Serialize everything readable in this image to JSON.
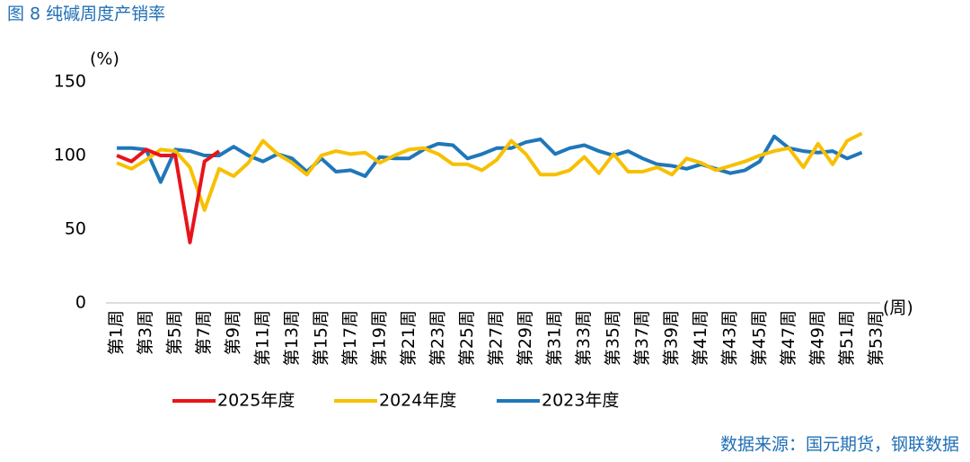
{
  "chart_data": {
    "type": "line",
    "title": "图 8  纯碱周度产销率",
    "y_unit": "(%)",
    "x_unit": "(周)",
    "source": "数据来源：国元期货，钢联数据",
    "categories": [
      "第1周",
      null,
      "第3周",
      null,
      "第5周",
      null,
      "第7周",
      null,
      "第9周",
      null,
      "第11周",
      null,
      "第13周",
      null,
      "第15周",
      null,
      "第17周",
      null,
      "第19周",
      null,
      "第21周",
      null,
      "第23周",
      null,
      "第25周",
      null,
      "第27周",
      null,
      "第29周",
      null,
      "第31周",
      null,
      "第33周",
      null,
      "第35周",
      null,
      "第37周",
      null,
      "第39周",
      null,
      "第41周",
      null,
      "第43周",
      null,
      "第45周",
      null,
      "第47周",
      null,
      "第49周",
      null,
      "第51周",
      null,
      "第53周"
    ],
    "ylim": [
      0,
      150
    ],
    "yticks": [
      0,
      50,
      100,
      150
    ],
    "grid": false,
    "series": [
      {
        "name": "2025年度",
        "color": "#e8141b",
        "values": [
          100,
          96,
          104,
          100,
          100,
          41,
          96,
          103,
          null,
          null,
          null,
          null,
          null,
          null,
          null,
          null,
          null,
          null,
          null,
          null,
          null,
          null,
          null,
          null,
          null,
          null,
          null,
          null,
          null,
          null,
          null,
          null,
          null,
          null,
          null,
          null,
          null,
          null,
          null,
          null,
          null,
          null,
          null,
          null,
          null,
          null,
          null,
          null,
          null,
          null,
          null,
          null,
          null
        ]
      },
      {
        "name": "2024年度",
        "color": "#f7c000",
        "values": [
          95,
          91,
          97,
          104,
          103,
          92,
          63,
          91,
          86,
          95,
          110,
          101,
          95,
          87,
          100,
          103,
          101,
          102,
          95,
          100,
          104,
          105,
          101,
          94,
          94,
          90,
          97,
          110,
          101,
          87,
          87,
          90,
          99,
          88,
          101,
          89,
          89,
          92,
          87,
          98,
          95,
          90,
          93,
          96,
          100,
          103,
          105,
          92,
          108,
          94,
          110,
          115,
          null
        ]
      },
      {
        "name": "2023年度",
        "color": "#1f77b9",
        "values": [
          105,
          105,
          104,
          82,
          104,
          103,
          100,
          100,
          106,
          100,
          96,
          101,
          98,
          89,
          98,
          89,
          90,
          86,
          99,
          98,
          98,
          104,
          108,
          107,
          98,
          101,
          105,
          105,
          109,
          111,
          101,
          105,
          107,
          103,
          100,
          103,
          98,
          94,
          93,
          91,
          94,
          91,
          88,
          90,
          96,
          113,
          105,
          103,
          102,
          103,
          98,
          102,
          null
        ]
      }
    ]
  }
}
